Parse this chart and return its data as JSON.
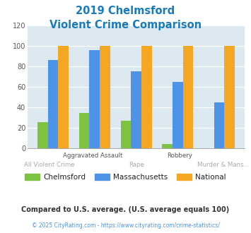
{
  "title_line1": "2019 Chelmsford",
  "title_line2": "Violent Crime Comparison",
  "title_color": "#1a7abf",
  "categories": [
    "All Violent Crime",
    "Aggravated Assault",
    "Rape",
    "Robbery",
    "Murder & Mans..."
  ],
  "chelmsford": [
    25,
    34,
    27,
    4,
    0
  ],
  "massachusetts": [
    86,
    96,
    75,
    65,
    45
  ],
  "national": [
    100,
    100,
    100,
    100,
    100
  ],
  "chelmsford_color": "#7dc241",
  "massachusetts_color": "#4d94e8",
  "national_color": "#f5a623",
  "ylim": [
    0,
    120
  ],
  "yticks": [
    0,
    20,
    40,
    60,
    80,
    100,
    120
  ],
  "plot_bg": "#dce9f0",
  "legend_labels": [
    "Chelmsford",
    "Massachusetts",
    "National"
  ],
  "footnote1": "Compared to U.S. average. (U.S. average equals 100)",
  "footnote2": "© 2025 CityRating.com - https://www.cityrating.com/crime-statistics/",
  "footnote1_color": "#333333",
  "footnote2_color": "#4d94e8",
  "bar_width": 0.25
}
